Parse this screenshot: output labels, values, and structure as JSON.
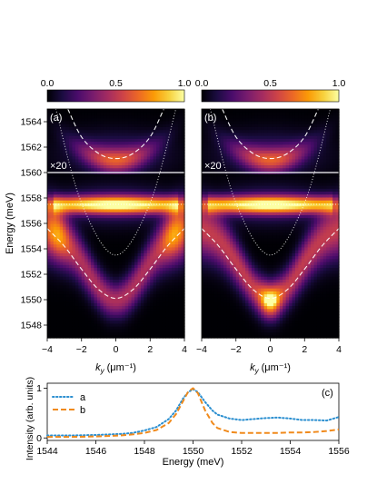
{
  "colormap": {
    "name": "inferno",
    "ticks": [
      "0.0",
      "0.5",
      "1.0"
    ],
    "tick_values": [
      0,
      0.5,
      1
    ],
    "stops": [
      "#000004",
      "#1b0c41",
      "#4a0c6b",
      "#781c6d",
      "#a52c60",
      "#cf4446",
      "#ed6925",
      "#fb9b06",
      "#f7d13d",
      "#fcffa4"
    ]
  },
  "chart_data": [
    {
      "type": "heatmap",
      "panel_label": "(a)",
      "xlabel": "k",
      "xlabel_sub": "y",
      "xlabel_unit": " (μm⁻¹)",
      "ylabel": "Energy (meV)",
      "xlim": [
        -4,
        4
      ],
      "ylim": [
        1547,
        1565
      ],
      "xticks": [
        -4,
        -2,
        0,
        2,
        4
      ],
      "yticks": [
        1548,
        1550,
        1552,
        1554,
        1556,
        1558,
        1560,
        1562,
        1564
      ],
      "zoom_annotation": "×20",
      "zoom_boundary_energy": 1560,
      "intensity_features": {
        "lower_branch": {
          "min_energy": 1550,
          "edge_energy_at_kmax": 1555.5,
          "peak_location": "k≈±3.5"
        },
        "flat_band_energy": 1557.5,
        "upper_branch": {
          "min_energy": 1561,
          "curvature": 0.2
        }
      },
      "dashed_curves": [
        {
          "name": "lower-dispersion",
          "style": "dashed",
          "points": [
            [
              -4,
              1555.6
            ],
            [
              -3,
              1554.2
            ],
            [
              -2,
              1552.4
            ],
            [
              -1,
              1550.8
            ],
            [
              0,
              1550.1
            ],
            [
              1,
              1550.8
            ],
            [
              2,
              1552.4
            ],
            [
              3,
              1554.2
            ],
            [
              4,
              1555.6
            ]
          ]
        },
        {
          "name": "upper-dispersion",
          "style": "dashed",
          "points": [
            [
              -2.8,
              1565
            ],
            [
              -2,
              1562.8
            ],
            [
              -1,
              1561.5
            ],
            [
              0,
              1561.1
            ],
            [
              1,
              1561.5
            ],
            [
              2,
              1562.8
            ],
            [
              2.8,
              1565
            ]
          ]
        },
        {
          "name": "flat-band",
          "style": "dotted",
          "points": [
            [
              -4,
              1557.5
            ],
            [
              4,
              1557.5
            ]
          ]
        },
        {
          "name": "bare-parabola",
          "style": "dotted",
          "points": [
            [
              -3.5,
              1565
            ],
            [
              -2,
              1557.6
            ],
            [
              0,
              1553.5
            ],
            [
              2,
              1557.6
            ],
            [
              3.5,
              1565
            ]
          ]
        }
      ]
    },
    {
      "type": "heatmap",
      "panel_label": "(b)",
      "xlabel": "k",
      "xlabel_sub": "y",
      "xlabel_unit": " (μm⁻¹)",
      "xlim": [
        -4,
        4
      ],
      "ylim": [
        1547,
        1565
      ],
      "xticks": [
        -4,
        -2,
        0,
        2,
        4
      ],
      "zoom_annotation": "×20",
      "zoom_boundary_energy": 1560,
      "intensity_features": {
        "lower_branch": {
          "min_energy": 1550,
          "edge_energy_at_kmax": 1555.5,
          "peak_location": "k≈0"
        },
        "flat_band_energy": 1557.5,
        "upper_branch": {
          "min_energy": 1561,
          "curvature": 0.2
        }
      },
      "dashed_curves": [
        {
          "name": "lower-dispersion",
          "style": "dashed",
          "points": [
            [
              -4,
              1555.6
            ],
            [
              -3,
              1554.2
            ],
            [
              -2,
              1552.4
            ],
            [
              -1,
              1550.8
            ],
            [
              0,
              1550.1
            ],
            [
              1,
              1550.8
            ],
            [
              2,
              1552.4
            ],
            [
              3,
              1554.2
            ],
            [
              4,
              1555.6
            ]
          ]
        },
        {
          "name": "upper-dispersion",
          "style": "dashed",
          "points": [
            [
              -2.8,
              1565
            ],
            [
              -2,
              1562.8
            ],
            [
              -1,
              1561.5
            ],
            [
              0,
              1561.1
            ],
            [
              1,
              1561.5
            ],
            [
              2,
              1562.8
            ],
            [
              2.8,
              1565
            ]
          ]
        },
        {
          "name": "flat-band",
          "style": "dotted",
          "points": [
            [
              -4,
              1557.5
            ],
            [
              4,
              1557.5
            ]
          ]
        },
        {
          "name": "bare-parabola",
          "style": "dotted",
          "points": [
            [
              -3.5,
              1565
            ],
            [
              -2,
              1557.6
            ],
            [
              0,
              1553.5
            ],
            [
              2,
              1557.6
            ],
            [
              3.5,
              1565
            ]
          ]
        }
      ]
    },
    {
      "type": "line",
      "panel_label": "(c)",
      "xlabel": "Energy (meV)",
      "ylabel": "Intensity (arb. units)",
      "xlim": [
        1544,
        1556
      ],
      "ylim": [
        -0.05,
        1.1
      ],
      "xticks": [
        1544,
        1546,
        1548,
        1550,
        1552,
        1554,
        1556
      ],
      "yticks": [
        0,
        1
      ],
      "legend_position": "top-left",
      "series": [
        {
          "name": "a",
          "color": "#2b8fd0",
          "style": "dotted",
          "x": [
            1544,
            1545,
            1546,
            1547,
            1547.5,
            1548,
            1548.5,
            1549,
            1549.3,
            1549.6,
            1549.8,
            1550,
            1550.2,
            1550.5,
            1550.8,
            1551,
            1551.5,
            1552,
            1552.5,
            1553,
            1553.5,
            1554,
            1554.5,
            1555,
            1555.5,
            1556
          ],
          "y": [
            0.05,
            0.05,
            0.06,
            0.08,
            0.1,
            0.15,
            0.22,
            0.38,
            0.55,
            0.8,
            0.92,
            0.98,
            0.92,
            0.72,
            0.55,
            0.47,
            0.39,
            0.36,
            0.38,
            0.4,
            0.41,
            0.39,
            0.36,
            0.36,
            0.35,
            0.42
          ]
        },
        {
          "name": "b",
          "color": "#f08a1c",
          "style": "dashed",
          "x": [
            1544,
            1545,
            1546,
            1547,
            1547.5,
            1548,
            1548.5,
            1549,
            1549.3,
            1549.6,
            1549.8,
            1550,
            1550.2,
            1550.5,
            1550.8,
            1551,
            1551.5,
            1552,
            1552.5,
            1553,
            1553.5,
            1554,
            1554.5,
            1555,
            1555.5,
            1556
          ],
          "y": [
            0.02,
            0.02,
            0.03,
            0.05,
            0.07,
            0.1,
            0.16,
            0.3,
            0.48,
            0.75,
            0.93,
            1.0,
            0.9,
            0.55,
            0.3,
            0.2,
            0.12,
            0.1,
            0.1,
            0.1,
            0.1,
            0.11,
            0.11,
            0.12,
            0.14,
            0.17
          ]
        }
      ]
    }
  ]
}
